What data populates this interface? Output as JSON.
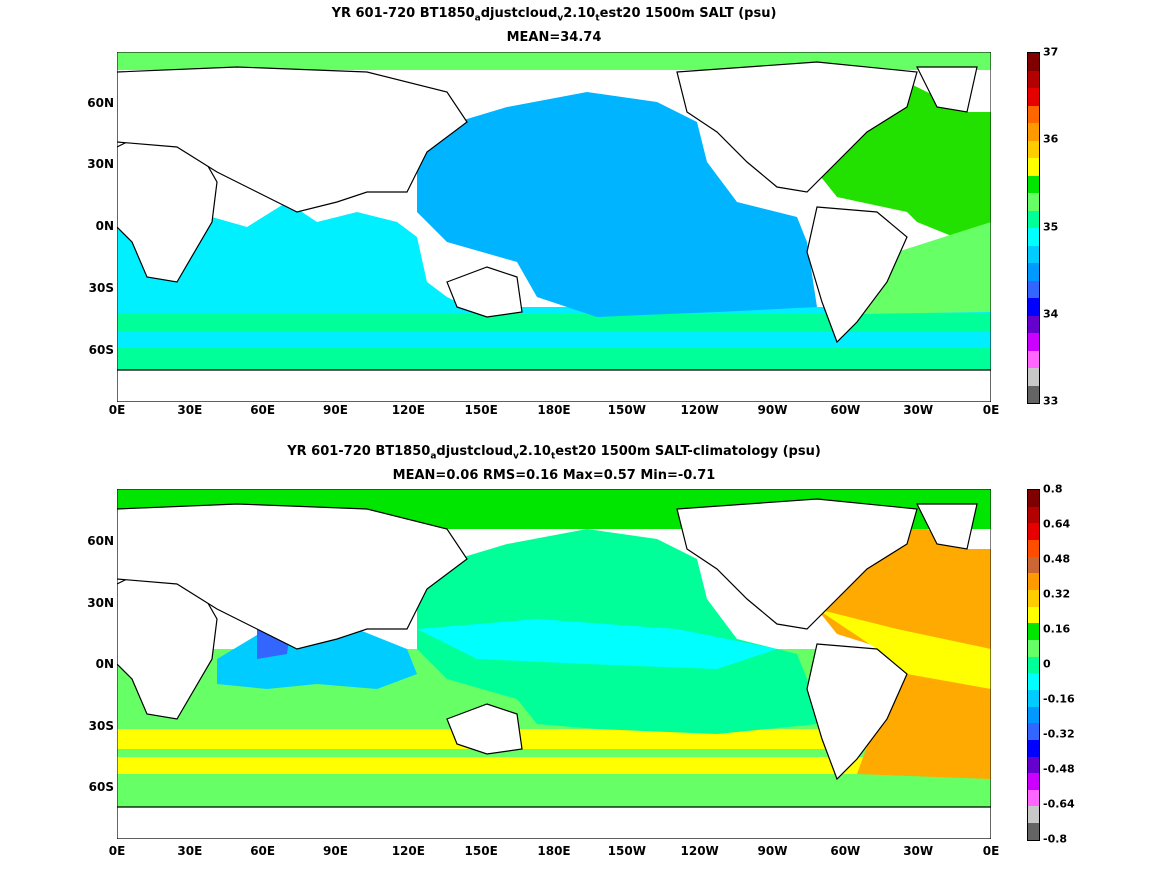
{
  "panel1": {
    "title_a": "YR 601-720 BT1850",
    "title_sub_a": "a",
    "title_b": "djustcloud",
    "title_sub_b": "v",
    "title_c": "2.10",
    "title_sub_c": "t",
    "title_d": "est20 1500m SALT (psu)",
    "subtitle": "MEAN=34.74",
    "colorbar": {
      "labels": [
        "37",
        "36",
        "35",
        "34",
        "33"
      ],
      "colors": [
        "#800000",
        "#b30000",
        "#e60000",
        "#ff6600",
        "#ff9900",
        "#ffcc00",
        "#ffff00",
        "#00e600",
        "#66ff66",
        "#00ff99",
        "#00ffff",
        "#00ccff",
        "#0099ff",
        "#3366ff",
        "#0000ff",
        "#6600cc",
        "#cc00ff",
        "#ff66ff",
        "#c8c8c8",
        "#646464"
      ]
    },
    "map_colors": {
      "pacific": "#00b4ff",
      "indian": "#00f0ff",
      "atlantic": "#22e000",
      "southern_a": "#00ff99",
      "southern_b": "#00eeff",
      "arctic": "#66ff66",
      "land": "#ffffff"
    }
  },
  "panel2": {
    "title_a": "YR 601-720 BT1850",
    "title_sub_a": "a",
    "title_b": "djustcloud",
    "title_sub_b": "v",
    "title_c": "2.10",
    "title_sub_c": "t",
    "title_d": "est20 1500m SALT-climatology (psu)",
    "subtitle": "MEAN=0.06   RMS=0.16   Max=0.57   Min=-0.71",
    "colorbar": {
      "labels": [
        "0.8",
        "0.64",
        "0.48",
        "0.32",
        "0.16",
        "0",
        "-0.16",
        "-0.32",
        "-0.48",
        "-0.64",
        "-0.8"
      ],
      "colors": [
        "#800000",
        "#b30000",
        "#e60000",
        "#ff4d00",
        "#cc6633",
        "#ff9900",
        "#ffcc00",
        "#ffff00",
        "#00e600",
        "#66ff66",
        "#00ff99",
        "#00ffff",
        "#00ccff",
        "#0099ff",
        "#3366ff",
        "#0000ff",
        "#6600cc",
        "#cc00ff",
        "#ff66ff",
        "#c8c8c8",
        "#646464"
      ]
    },
    "map_colors": {
      "pacific": "#00ff99",
      "indian": "#00ccff",
      "atlantic": "#ffaa00",
      "southern_a": "#ffff00",
      "southern_b": "#66ff66",
      "arctic": "#00e600",
      "land": "#ffffff"
    }
  },
  "axes": {
    "x_ticks": [
      "0E",
      "30E",
      "60E",
      "90E",
      "120E",
      "150E",
      "180E",
      "150W",
      "120W",
      "90W",
      "60W",
      "30W",
      "0E"
    ],
    "y_ticks": [
      "60N",
      "30N",
      "0N",
      "30S",
      "60S"
    ]
  }
}
